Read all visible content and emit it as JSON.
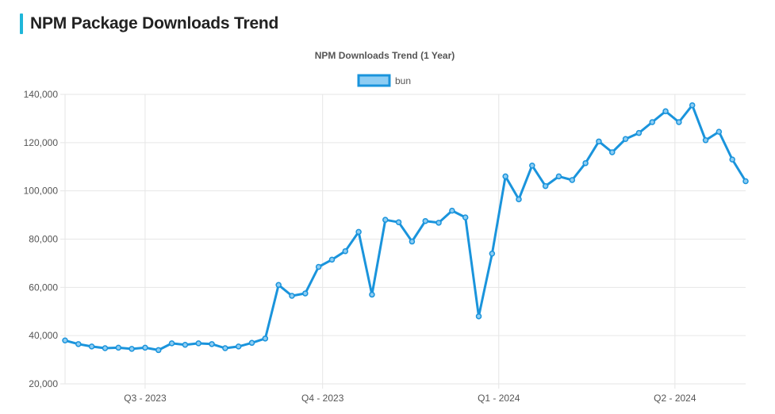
{
  "page": {
    "title": "NPM Package Downloads Trend"
  },
  "colors": {
    "accent": "#1fb6d9",
    "series": "#1a94dc",
    "series_fill": "#8ecdf3",
    "grid": "#e6e6e6"
  },
  "chart_data": {
    "type": "line",
    "title": "NPM Downloads Trend (1 Year)",
    "legend": {
      "position": "top",
      "entries": [
        "bun"
      ]
    },
    "grid": true,
    "ylim": [
      20000,
      140000
    ],
    "y_ticks": [
      20000,
      40000,
      60000,
      80000,
      100000,
      120000,
      140000
    ],
    "y_tick_labels": [
      "20,000",
      "40,000",
      "60,000",
      "80,000",
      "100,000",
      "120,000",
      "140,000"
    ],
    "x_ticks": [
      {
        "index": 6,
        "label": "Q3 - 2023"
      },
      {
        "index": 19.3,
        "label": "Q4 - 2023"
      },
      {
        "index": 32.5,
        "label": "Q1 - 2024"
      },
      {
        "index": 45.7,
        "label": "Q2 - 2024"
      }
    ],
    "series": [
      {
        "name": "bun",
        "values": [
          38000,
          36500,
          35500,
          34800,
          35000,
          34500,
          35000,
          34000,
          36800,
          36200,
          36800,
          36500,
          34800,
          35500,
          37000,
          38800,
          61000,
          56500,
          57500,
          68500,
          71500,
          75000,
          83000,
          57000,
          88000,
          87000,
          79000,
          87500,
          86800,
          91800,
          89000,
          48000,
          74000,
          106000,
          96500,
          110500,
          102000,
          106000,
          104500,
          111500,
          120500,
          116000,
          121500,
          124000,
          128500,
          133000,
          128500,
          135500,
          121000,
          124500,
          113000,
          104000
        ]
      }
    ]
  }
}
